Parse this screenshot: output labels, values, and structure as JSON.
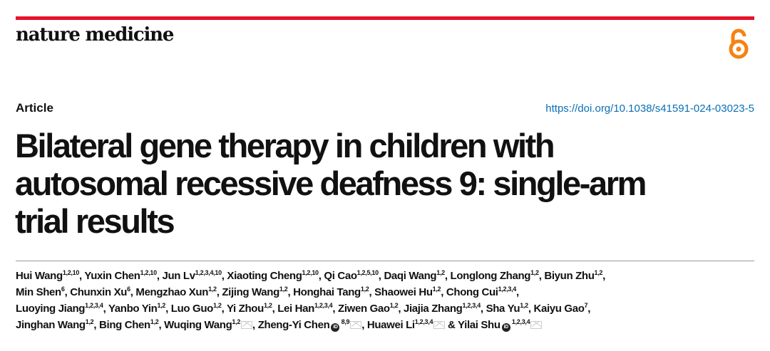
{
  "journal": {
    "name": "nature medicine",
    "brand_color": "#e8132a",
    "open_access_icon": "open-access-lock-icon",
    "open_access_color": "#f68212"
  },
  "article": {
    "type": "Article",
    "doi": "https://doi.org/10.1038/s41591-024-03023-5",
    "title_lines": [
      "Bilateral gene therapy in children with",
      "autosomal recessive deafness 9: single-arm",
      "trial results"
    ]
  },
  "authors": [
    [
      {
        "name": "Hui Wang",
        "aff": "1,2,10"
      },
      {
        "name": "Yuxin Chen",
        "aff": "1,2,10"
      },
      {
        "name": "Jun Lv",
        "aff": "1,2,3,4,10"
      },
      {
        "name": "Xiaoting Cheng",
        "aff": "1,2,10"
      },
      {
        "name": "Qi Cao",
        "aff": "1,2,5,10"
      },
      {
        "name": "Daqi Wang",
        "aff": "1,2"
      },
      {
        "name": "Longlong Zhang",
        "aff": "1,2"
      },
      {
        "name": "Biyun Zhu",
        "aff": "1,2"
      }
    ],
    [
      {
        "name": "Min Shen",
        "aff": "6"
      },
      {
        "name": "Chunxin Xu",
        "aff": "6"
      },
      {
        "name": "Mengzhao Xun",
        "aff": "1,2"
      },
      {
        "name": "Zijing Wang",
        "aff": "1,2"
      },
      {
        "name": "Honghai Tang",
        "aff": "1,2"
      },
      {
        "name": "Shaowei Hu",
        "aff": "1,2"
      },
      {
        "name": "Chong Cui",
        "aff": "1,2,3,4"
      }
    ],
    [
      {
        "name": "Luoying Jiang",
        "aff": "1,2,3,4"
      },
      {
        "name": "Yanbo Yin",
        "aff": "1,2"
      },
      {
        "name": "Luo Guo",
        "aff": "1,2"
      },
      {
        "name": "Yi Zhou",
        "aff": "1,2"
      },
      {
        "name": "Lei Han",
        "aff": "1,2,3,4"
      },
      {
        "name": "Ziwen Gao",
        "aff": "1,2"
      },
      {
        "name": "Jiajia Zhang",
        "aff": "1,2,3,4"
      },
      {
        "name": "Sha Yu",
        "aff": "1,2"
      },
      {
        "name": "Kaiyu Gao",
        "aff": "7"
      }
    ],
    [
      {
        "name": "Jinghan Wang",
        "aff": "1,2"
      },
      {
        "name": "Bing Chen",
        "aff": "1,2"
      },
      {
        "name": "Wuqing Wang",
        "aff": "1,2",
        "mail": true
      },
      {
        "name": "Zheng-Yi Chen",
        "aff": "8,9",
        "orcid": true,
        "mail": true
      },
      {
        "name": "Huawei Li",
        "aff": "1,2,3,4",
        "mail": true
      },
      {
        "name": "Yilai Shu",
        "aff": "1,2,3,4",
        "orcid": true,
        "mail": true,
        "prefix": "& "
      }
    ]
  ],
  "orcid_label": "iD"
}
